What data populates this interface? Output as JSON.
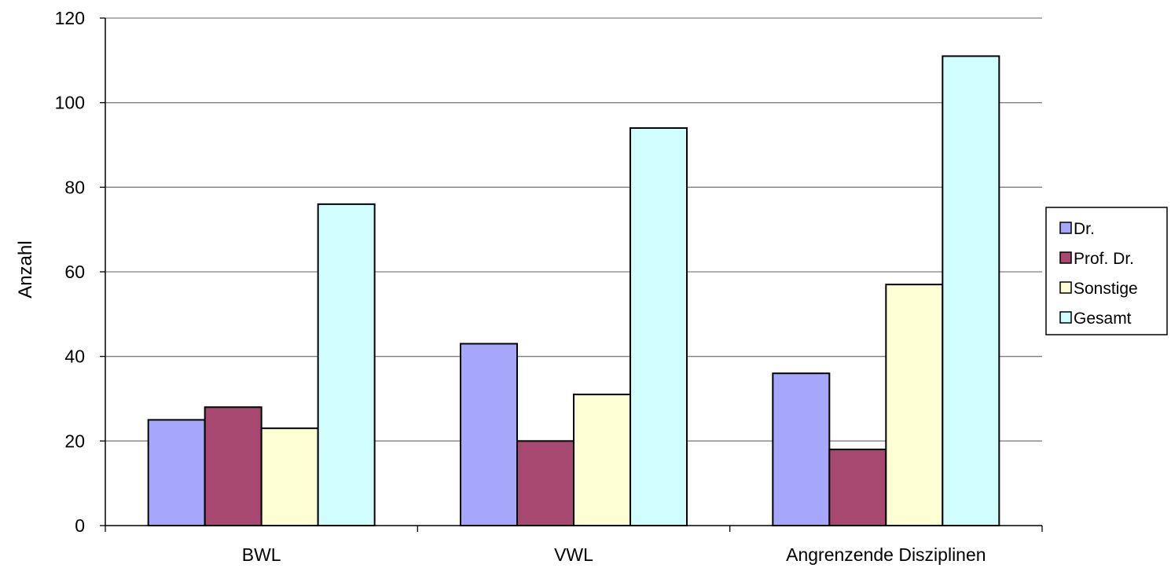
{
  "chart_data": {
    "type": "bar",
    "title": "",
    "xlabel": "",
    "ylabel": "Anzahl",
    "ylim": [
      0,
      120
    ],
    "ytick_step": 20,
    "grid": true,
    "legend_position": "right",
    "categories": [
      "BWL",
      "VWL",
      "Angrenzende Disziplinen"
    ],
    "series": [
      {
        "name": "Dr.",
        "color": "#a6a6fb",
        "values": [
          25,
          43,
          36
        ]
      },
      {
        "name": "Prof. Dr.",
        "color": "#a74870",
        "values": [
          28,
          20,
          18
        ]
      },
      {
        "name": "Sonstige",
        "color": "#fefed4",
        "values": [
          23,
          31,
          57
        ]
      },
      {
        "name": "Gesamt",
        "color": "#d0fefe",
        "values": [
          76,
          94,
          111
        ]
      }
    ]
  }
}
